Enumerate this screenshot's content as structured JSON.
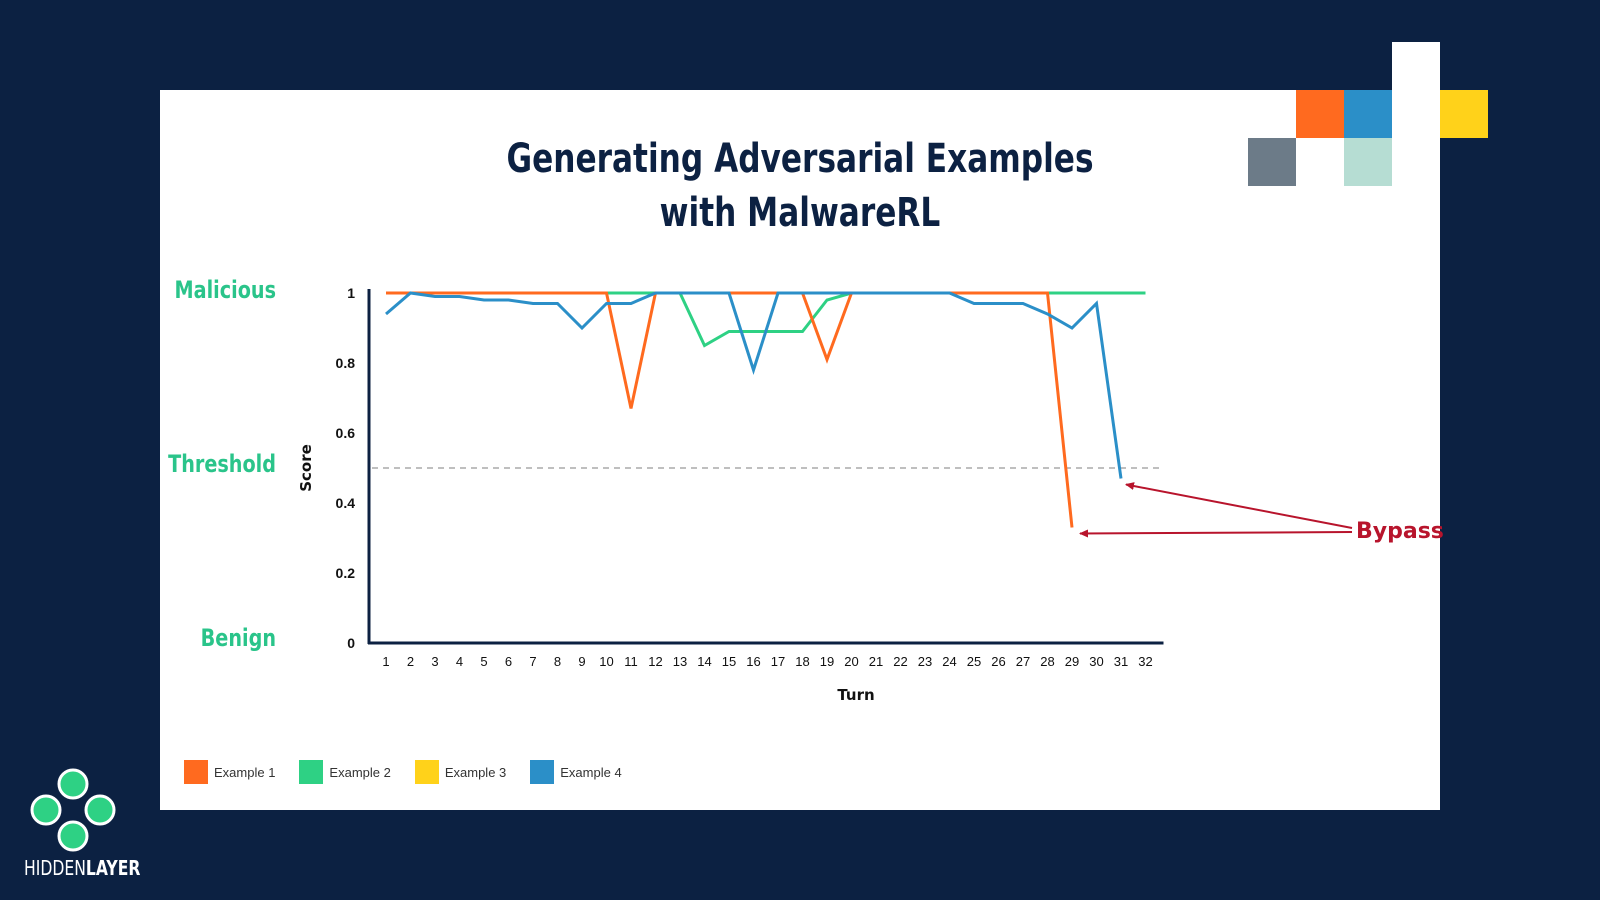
{
  "colors": {
    "background": "#0c2142",
    "card": "#ffffff",
    "example1": "#ff6a1f",
    "example2": "#2ed184",
    "example3": "#ffd21a",
    "example4": "#2b8fc8",
    "label_green": "#2ac48a",
    "annotation": "#b8142c"
  },
  "chart_data": {
    "type": "line",
    "title": "Generating Adversarial Examples with MalwareRL",
    "title_lines": [
      "Generating Adversarial Examples",
      "with MalwareRL"
    ],
    "xlabel": "Turn",
    "ylabel": "Score",
    "ylim": [
      0,
      1
    ],
    "yticks": [
      "0",
      "0.2",
      "0.4",
      "0.6",
      "0.8",
      "1"
    ],
    "x": [
      1,
      2,
      3,
      4,
      5,
      6,
      7,
      8,
      9,
      10,
      11,
      12,
      13,
      14,
      15,
      16,
      17,
      18,
      19,
      20,
      21,
      22,
      23,
      24,
      25,
      26,
      27,
      28,
      29,
      30,
      31,
      32
    ],
    "threshold": 0.5,
    "side_labels": {
      "malicious": "Malicious",
      "threshold": "Threshold",
      "benign": "Benign"
    },
    "grid": false,
    "legend_position": "bottom-left",
    "series": [
      {
        "name": "Example 1",
        "color": "#ff6a1f",
        "x": [
          1,
          2,
          3,
          4,
          5,
          6,
          7,
          8,
          9,
          10,
          11,
          12,
          13,
          14,
          15,
          16,
          17,
          18,
          19,
          20,
          21,
          22,
          23,
          24,
          25,
          26,
          27,
          28,
          29
        ],
        "values": [
          1,
          1,
          1,
          1,
          1,
          1,
          1,
          1,
          1,
          1,
          0.67,
          1,
          1,
          1,
          1,
          1,
          1,
          1,
          0.81,
          1,
          1,
          1,
          1,
          1,
          1,
          1,
          1,
          1,
          0.33
        ]
      },
      {
        "name": "Example 2",
        "color": "#2ed184",
        "x": [
          1,
          2,
          3,
          4,
          5,
          6,
          7,
          8,
          9,
          10,
          11,
          12,
          13,
          14,
          15,
          16,
          17,
          18,
          19,
          20,
          21,
          22,
          23,
          24,
          25,
          26,
          27,
          28,
          29,
          30,
          31,
          32
        ],
        "values": [
          1,
          1,
          1,
          1,
          1,
          1,
          1,
          1,
          1,
          1,
          1,
          1,
          1,
          0.85,
          0.89,
          0.89,
          0.89,
          0.89,
          0.98,
          1,
          1,
          1,
          1,
          1,
          1,
          1,
          1,
          1,
          1,
          1,
          1,
          1
        ]
      },
      {
        "name": "Example 3",
        "color": "#ffd21a",
        "x": [
          1,
          2,
          3,
          4,
          5,
          6,
          7,
          8,
          9,
          10,
          11,
          12,
          13,
          14,
          15,
          16,
          17,
          18,
          19,
          20,
          21,
          22,
          23,
          24,
          25,
          26,
          27,
          28,
          29,
          30,
          31,
          32
        ],
        "values": [
          1,
          1,
          1,
          1,
          1,
          1,
          1,
          1,
          1,
          1,
          1,
          1,
          1,
          1,
          1,
          1,
          1,
          1,
          1,
          1,
          1,
          1,
          1,
          1,
          1,
          1,
          1,
          1,
          1,
          1,
          1,
          1
        ]
      },
      {
        "name": "Example 4",
        "color": "#2b8fc8",
        "x": [
          1,
          2,
          3,
          4,
          5,
          6,
          7,
          8,
          9,
          10,
          11,
          12,
          13,
          14,
          15,
          16,
          17,
          18,
          19,
          20,
          21,
          22,
          23,
          24,
          25,
          26,
          27,
          28,
          29,
          30,
          31
        ],
        "values": [
          0.94,
          1,
          0.99,
          0.99,
          0.98,
          0.98,
          0.97,
          0.97,
          0.9,
          0.97,
          0.97,
          1,
          1,
          1,
          1,
          0.78,
          1,
          1,
          1,
          1,
          1,
          1,
          1,
          1,
          0.97,
          0.97,
          0.97,
          0.94,
          0.9,
          0.97,
          0.47
        ]
      }
    ],
    "annotation": {
      "text": "Bypass",
      "targets": [
        {
          "x": 29,
          "y": 0.33
        },
        {
          "x": 31,
          "y": 0.47
        }
      ]
    }
  },
  "legend": [
    "Example 1",
    "Example 2",
    "Example 3",
    "Example 4"
  ],
  "logo": {
    "text_light": "HIDDEN",
    "text_bold": "LAYER",
    "icon": "four-circles-logo-icon"
  }
}
